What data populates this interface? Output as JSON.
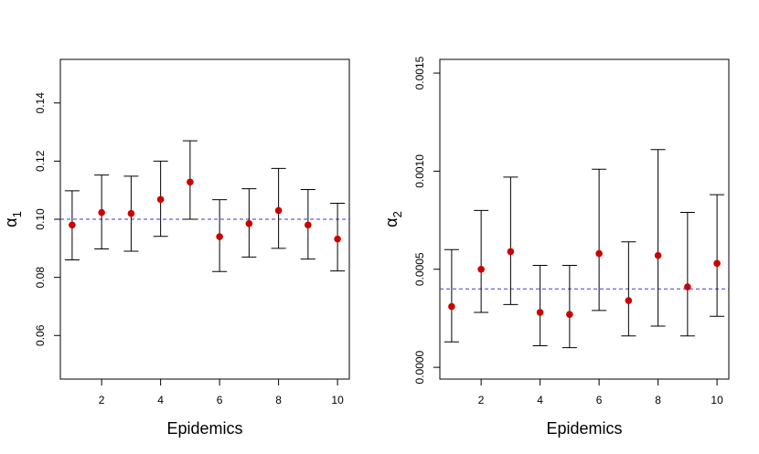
{
  "chart_data": [
    {
      "type": "scatter",
      "title": "",
      "xlabel": "Epidemics",
      "ylabel": "α",
      "ylabel_sub": "1",
      "xlim": [
        0.6,
        10.4
      ],
      "ylim": [
        0.045,
        0.155
      ],
      "xticks": [
        2,
        4,
        6,
        8,
        10
      ],
      "xtick_labels": [
        "2",
        "4",
        "6",
        "8",
        "10"
      ],
      "yticks": [
        0.06,
        0.08,
        0.1,
        0.12,
        0.14
      ],
      "ytick_labels": [
        "0.06",
        "0.08",
        "0.10",
        "0.12",
        "0.14"
      ],
      "reference_line": 0.1,
      "reference_color": "#3b3bcc",
      "point_color": "#cc0000",
      "grid": false,
      "x": [
        1,
        2,
        3,
        4,
        5,
        6,
        7,
        8,
        9,
        10
      ],
      "y": [
        0.098,
        0.1023,
        0.102,
        0.1068,
        0.1128,
        0.094,
        0.0985,
        0.103,
        0.098,
        0.0932
      ],
      "lower": [
        0.086,
        0.0898,
        0.089,
        0.0941,
        0.1,
        0.082,
        0.087,
        0.09,
        0.0863,
        0.0822
      ],
      "upper": [
        0.1098,
        0.1152,
        0.1148,
        0.12,
        0.127,
        0.1067,
        0.1105,
        0.1175,
        0.1102,
        0.1055
      ]
    },
    {
      "type": "scatter",
      "title": "",
      "xlabel": "Epidemics",
      "ylabel": "α",
      "ylabel_sub": "2",
      "xlim": [
        0.6,
        10.4
      ],
      "ylim": [
        -6e-05,
        0.00157
      ],
      "xticks": [
        2,
        4,
        6,
        8,
        10
      ],
      "xtick_labels": [
        "2",
        "4",
        "6",
        "8",
        "10"
      ],
      "yticks": [
        0.0,
        0.0005,
        0.001,
        0.0015
      ],
      "ytick_labels": [
        "0.0000",
        "0.0005",
        "0.0010",
        "0.0015"
      ],
      "reference_line": 0.0004,
      "reference_color": "#3b3bcc",
      "point_color": "#cc0000",
      "grid": false,
      "x": [
        1,
        2,
        3,
        4,
        5,
        6,
        7,
        8,
        9,
        10
      ],
      "y": [
        0.00031,
        0.0005,
        0.00059,
        0.00028,
        0.00027,
        0.00058,
        0.00034,
        0.00057,
        0.00041,
        0.00053
      ],
      "lower": [
        0.00013,
        0.00028,
        0.00032,
        0.00011,
        0.0001,
        0.00029,
        0.00016,
        0.00021,
        0.00016,
        0.00026
      ],
      "upper": [
        0.0006,
        0.0008,
        0.00097,
        0.00052,
        0.00052,
        0.00101,
        0.00064,
        0.00111,
        0.00079,
        0.00088
      ]
    }
  ]
}
